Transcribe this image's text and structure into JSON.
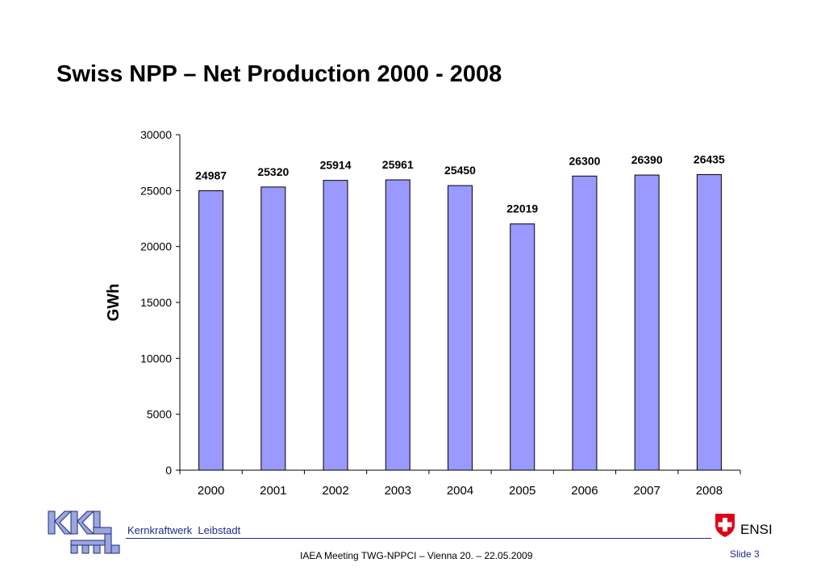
{
  "slide": {
    "title": "Swiss NPP – Net Production 2000 - 2008"
  },
  "chart_data": {
    "type": "bar",
    "title": "",
    "xlabel": "",
    "ylabel": "GWh",
    "categories": [
      "2000",
      "2001",
      "2002",
      "2003",
      "2004",
      "2005",
      "2006",
      "2007",
      "2008"
    ],
    "values": [
      24987,
      25320,
      25914,
      25961,
      25450,
      22019,
      26300,
      26390,
      26435
    ],
    "data_labels": [
      "24987",
      "25320",
      "25914",
      "25961",
      "25450",
      "22019",
      "26300",
      "26390",
      "26435"
    ],
    "ylim": [
      0,
      30000
    ],
    "yticks": [
      0,
      5000,
      10000,
      15000,
      20000,
      25000,
      30000
    ],
    "ytick_labels": [
      "0",
      "5000",
      "10000",
      "15000",
      "20000",
      "25000",
      "30000"
    ],
    "grid": false,
    "legend": "none",
    "bar_color": "#9999ff",
    "bar_edge_color": "#000000"
  },
  "footer": {
    "company": "Kernkraftwerk  Leibstadt",
    "meeting": "IAEA Meeting TWG-NPPCI – Vienna 20. – 22.05.2009",
    "slide_number": "Slide 3",
    "agency": "ENSI",
    "logo_text": "KKL",
    "accent_color": "#1f2a8a"
  }
}
